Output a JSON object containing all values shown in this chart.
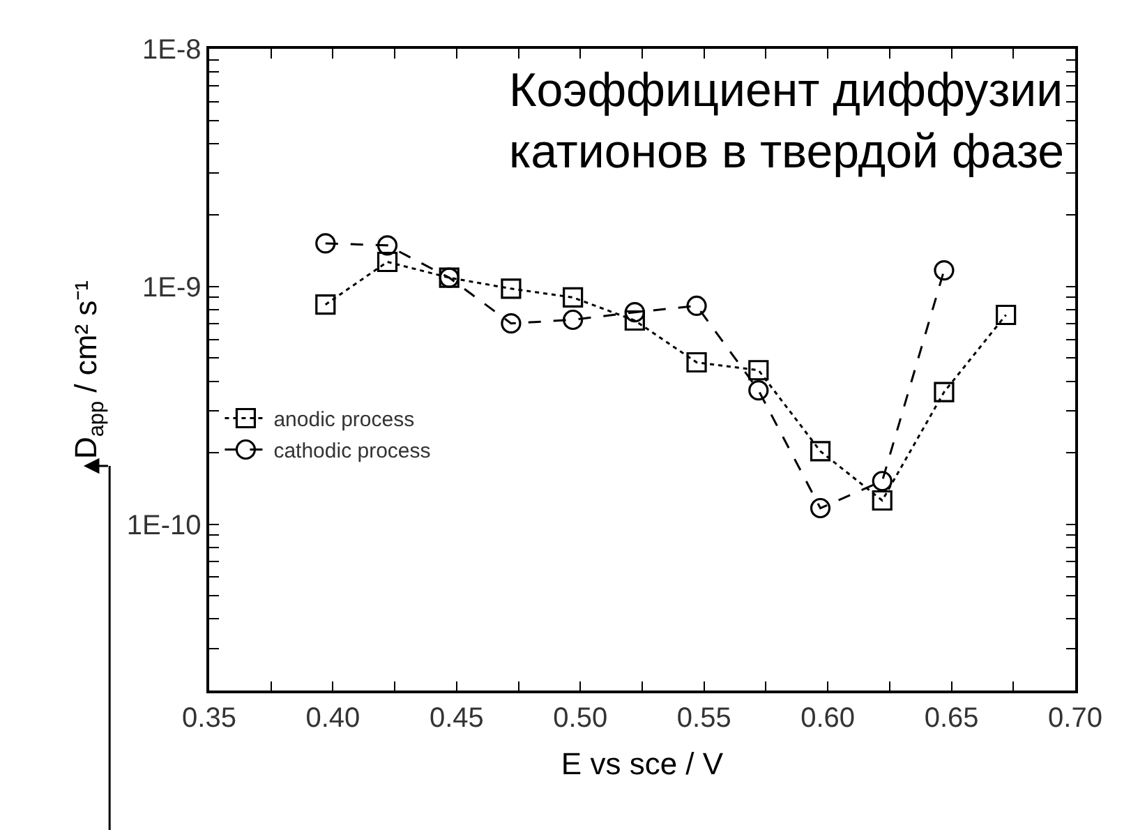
{
  "chart_data": {
    "type": "line",
    "xlabel": "E vs sce / V",
    "ylabel": "D$_{app}$ / cm² s⁻¹",
    "annotations": [
      "Коэффициент диффузии катионов в твердой фазе"
    ],
    "log": "y",
    "grid": false,
    "legend": "left",
    "xlim": [
      0.35,
      0.7
    ],
    "xticks": [
      {
        "value": 0.35,
        "label": "0.35"
      },
      {
        "value": 0.375,
        "label": null
      },
      {
        "value": 0.4,
        "label": "0.40"
      },
      {
        "value": 0.425,
        "label": null
      },
      {
        "value": 0.45,
        "label": "0.45"
      },
      {
        "value": 0.475,
        "label": null
      },
      {
        "value": 0.5,
        "label": "0.50"
      },
      {
        "value": 0.525,
        "label": null
      },
      {
        "value": 0.55,
        "label": "0.55"
      },
      {
        "value": 0.575,
        "label": null
      },
      {
        "value": 0.6,
        "label": "0.60"
      },
      {
        "value": 0.625,
        "label": null
      },
      {
        "value": 0.65,
        "label": "0.65"
      },
      {
        "value": 0.675,
        "label": null
      },
      {
        "value": 0.7,
        "label": "0.70"
      }
    ],
    "ylim": [
      2e-11,
      1e-08
    ],
    "yticks": [
      {
        "value": 3e-11,
        "label": null
      },
      {
        "value": 4e-11,
        "label": null
      },
      {
        "value": 5e-11,
        "label": null
      },
      {
        "value": 6e-11,
        "label": null
      },
      {
        "value": 7e-11,
        "label": null
      },
      {
        "value": 8e-11,
        "label": null
      },
      {
        "value": 9e-11,
        "label": null
      },
      {
        "value": 1e-10,
        "label": "1E-10"
      },
      {
        "value": 2e-10,
        "label": null
      },
      {
        "value": 3e-10,
        "label": null
      },
      {
        "value": 4e-10,
        "label": null
      },
      {
        "value": 5e-10,
        "label": null
      },
      {
        "value": 6e-10,
        "label": null
      },
      {
        "value": 7e-10,
        "label": null
      },
      {
        "value": 8e-10,
        "label": null
      },
      {
        "value": 9e-10,
        "label": null
      },
      {
        "value": 1e-09,
        "label": "1E-9"
      },
      {
        "value": 2e-09,
        "label": null
      },
      {
        "value": 3e-09,
        "label": null
      },
      {
        "value": 4e-09,
        "label": null
      },
      {
        "value": 5e-09,
        "label": null
      },
      {
        "value": 6e-09,
        "label": null
      },
      {
        "value": 7e-09,
        "label": null
      },
      {
        "value": 8e-09,
        "label": null
      },
      {
        "value": 9e-09,
        "label": null
      },
      {
        "value": 1e-08,
        "label": "1E-8"
      }
    ],
    "x": [
      0.397,
      0.422,
      0.447,
      0.472,
      0.497,
      0.522,
      0.547,
      0.572,
      0.597,
      0.622,
      0.647,
      0.672
    ],
    "series": [
      {
        "name": "anodic process",
        "color": "#000000",
        "marker": "square",
        "line_style": "dotted",
        "values": [
          8.4e-10,
          1.27e-09,
          1.09e-09,
          9.8e-10,
          9e-10,
          7.2e-10,
          4.8e-10,
          4.45e-10,
          2.03e-10,
          1.26e-10,
          3.6e-10,
          7.6e-10
        ]
      },
      {
        "name": "cathodic process",
        "color": "#000000",
        "marker": "circle",
        "line_style": "dashed",
        "x": [
          0.397,
          0.422,
          0.447,
          0.472,
          0.497,
          0.522,
          0.547,
          0.572,
          0.597,
          0.622,
          0.647
        ],
        "values": [
          1.52e-09,
          1.49e-09,
          1.09e-09,
          7e-10,
          7.25e-10,
          7.8e-10,
          8.3e-10,
          3.66e-10,
          1.17e-10,
          1.52e-10,
          1.17e-09
        ]
      }
    ]
  }
}
